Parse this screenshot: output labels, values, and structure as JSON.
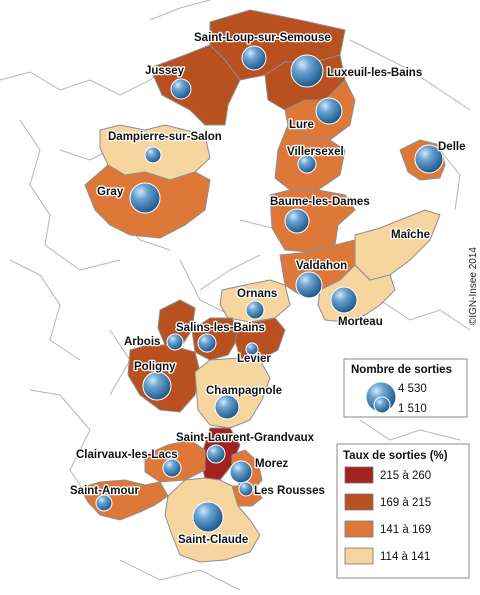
{
  "colors": {
    "class1": "#a3221f",
    "class2": "#b8501f",
    "class3": "#de7839",
    "class4": "#f6d59e",
    "bubble": "#3c7fb4",
    "border": "#9a9a9a",
    "background": "#ffffff"
  },
  "credit": "©IGN-Insee 2014",
  "legend_size": {
    "title": "Nombre de sorties",
    "max_label": "4 530",
    "min_label": "1 510"
  },
  "legend_rate": {
    "title": "Taux de sorties (%)",
    "classes": [
      {
        "label": "215 à 260",
        "color": "#a3221f"
      },
      {
        "label": "169 à 215",
        "color": "#b8501f"
      },
      {
        "label": "141 à 169",
        "color": "#de7839"
      },
      {
        "label": "114 à 141",
        "color": "#f6d59e"
      }
    ]
  },
  "zones": [
    {
      "name": "Saint-Loup-sur-Semouse",
      "class": 2
    },
    {
      "name": "Jussey",
      "class": 2
    },
    {
      "name": "Luxeuil-les-Bains",
      "class": 2
    },
    {
      "name": "Lure",
      "class": 3
    },
    {
      "name": "Dampierre-sur-Salon",
      "class": 4
    },
    {
      "name": "Delle",
      "class": 3
    },
    {
      "name": "Villersexel",
      "class": 3
    },
    {
      "name": "Gray",
      "class": 3
    },
    {
      "name": "Baume-les-Dames",
      "class": 3
    },
    {
      "name": "Maîche",
      "class": 4
    },
    {
      "name": "Valdahon",
      "class": 3
    },
    {
      "name": "Ornans",
      "class": 4
    },
    {
      "name": "Morteau",
      "class": 4
    },
    {
      "name": "Arbois",
      "class": 2
    },
    {
      "name": "Salins-les-Bains",
      "class": 2
    },
    {
      "name": "Levier",
      "class": 2
    },
    {
      "name": "Poligny",
      "class": 2
    },
    {
      "name": "Champagnole",
      "class": 4
    },
    {
      "name": "Saint-Laurent-Grandvaux",
      "class": 1
    },
    {
      "name": "Clairvaux-les-Lacs",
      "class": 3
    },
    {
      "name": "Morez",
      "class": 3
    },
    {
      "name": "Les Rousses",
      "class": 3
    },
    {
      "name": "Saint-Amour",
      "class": 3
    },
    {
      "name": "Saint-Claude",
      "class": 4
    }
  ]
}
